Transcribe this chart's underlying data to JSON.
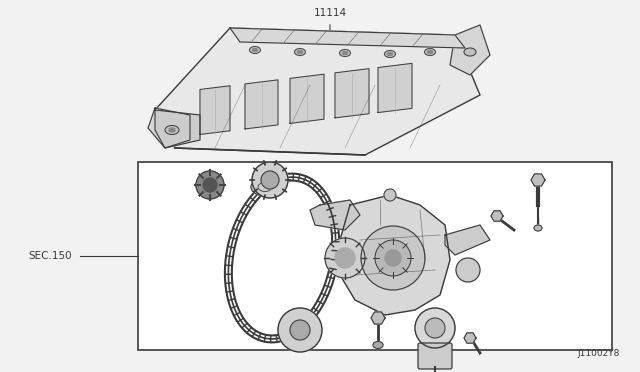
{
  "bg_color": "#f2f2f2",
  "line_color": "#3a3a3a",
  "label_11114": "11114",
  "label_sec150": "SEC.150",
  "label_j11002y8": "J11002Y8",
  "fig_width": 6.4,
  "fig_height": 3.72,
  "dpi": 100
}
